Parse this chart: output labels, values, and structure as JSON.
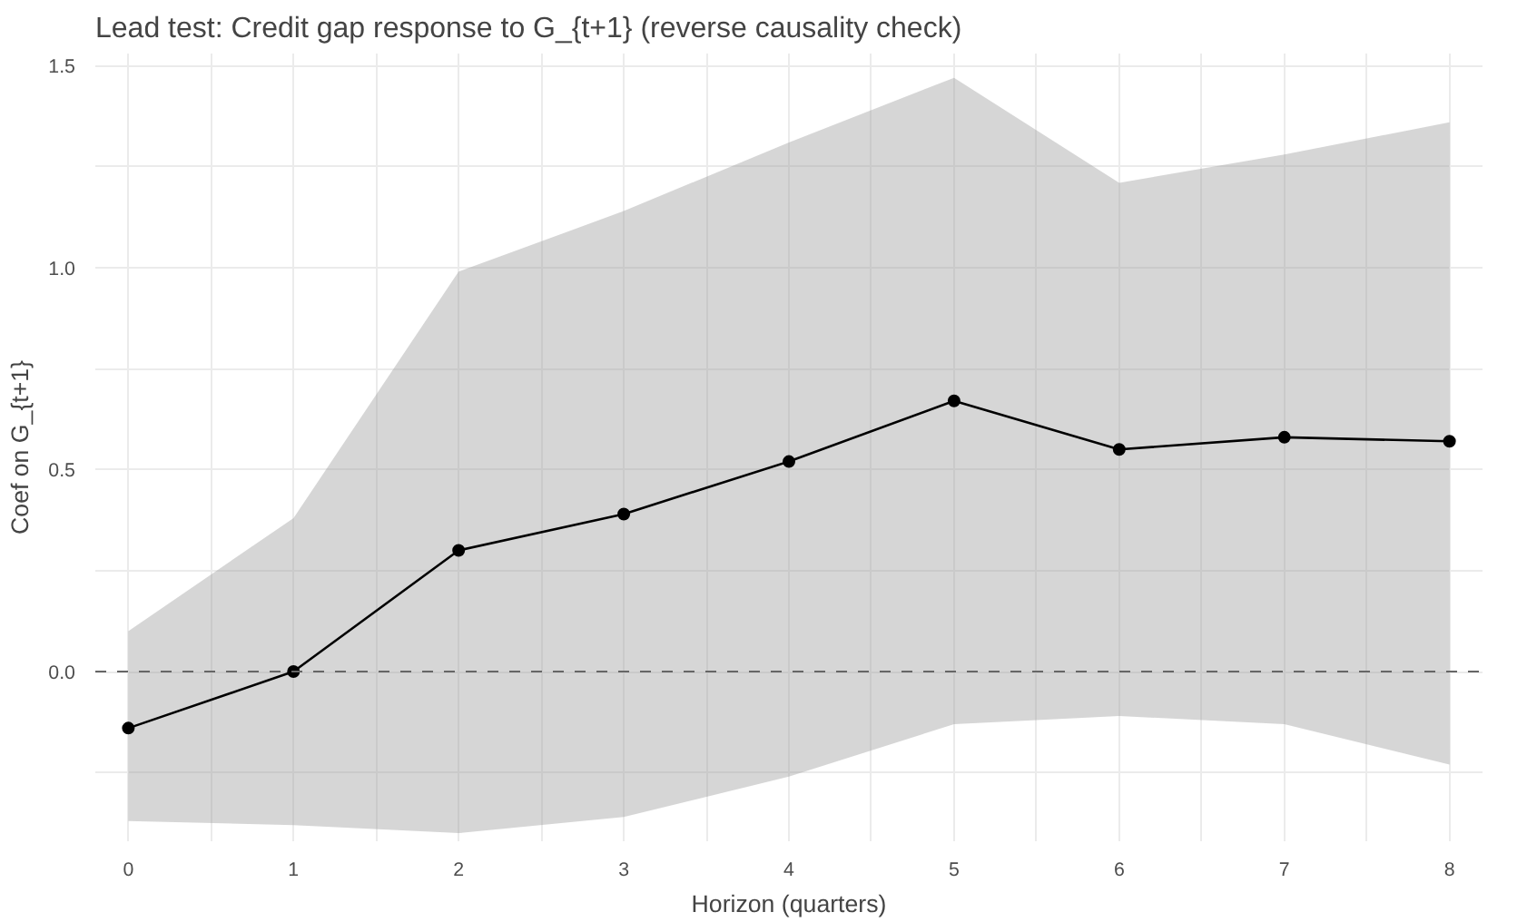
{
  "chart_data": {
    "type": "line",
    "title": "Lead test: Credit gap response to G_{t+1} (reverse causality check)",
    "xlabel": "Horizon (quarters)",
    "ylabel": "Coef on G_{t+1}",
    "x": [
      0,
      1,
      2,
      3,
      4,
      5,
      6,
      7,
      8
    ],
    "series": [
      {
        "color": "#000000",
        "values": [
          -0.14,
          0.0,
          0.3,
          0.39,
          0.52,
          0.67,
          0.55,
          0.58,
          0.57
        ],
        "lower": [
          -0.37,
          -0.38,
          -0.4,
          -0.36,
          -0.26,
          -0.13,
          -0.11,
          -0.13,
          -0.23
        ],
        "upper": [
          0.1,
          0.38,
          0.99,
          1.14,
          1.31,
          1.47,
          1.21,
          1.28,
          1.36
        ]
      }
    ],
    "xlim": [
      -0.2,
      8.2
    ],
    "ylim": [
      -0.42,
      1.53
    ],
    "xticks": [
      0,
      {
        "value": 0.5,
        "label": null
      },
      1,
      {
        "value": 1.5,
        "label": null
      },
      2,
      {
        "value": 2.5,
        "label": null
      },
      3,
      {
        "value": 3.5,
        "label": null
      },
      4,
      {
        "value": 4.5,
        "label": null
      },
      5,
      {
        "value": 5.5,
        "label": null
      },
      6,
      {
        "value": 6.5,
        "label": null
      },
      7,
      {
        "value": 7.5,
        "label": null
      },
      8
    ],
    "yticks": [
      {
        "value": -0.25,
        "label": null
      },
      {
        "value": 0,
        "label": "0.0"
      },
      {
        "value": 0.25,
        "label": null
      },
      {
        "value": 0.5,
        "label": "0.5"
      },
      {
        "value": 0.75,
        "label": null
      },
      {
        "value": 1.0,
        "label": "1.0"
      },
      {
        "value": 1.25,
        "label": null
      },
      {
        "value": 1.5,
        "label": "1.5"
      }
    ],
    "ref_lines": [
      {
        "axis": "y",
        "value": 0,
        "color": "#666666",
        "line_style": "dashed"
      }
    ],
    "grid": true,
    "marker": "circle",
    "line_style": "solid"
  }
}
